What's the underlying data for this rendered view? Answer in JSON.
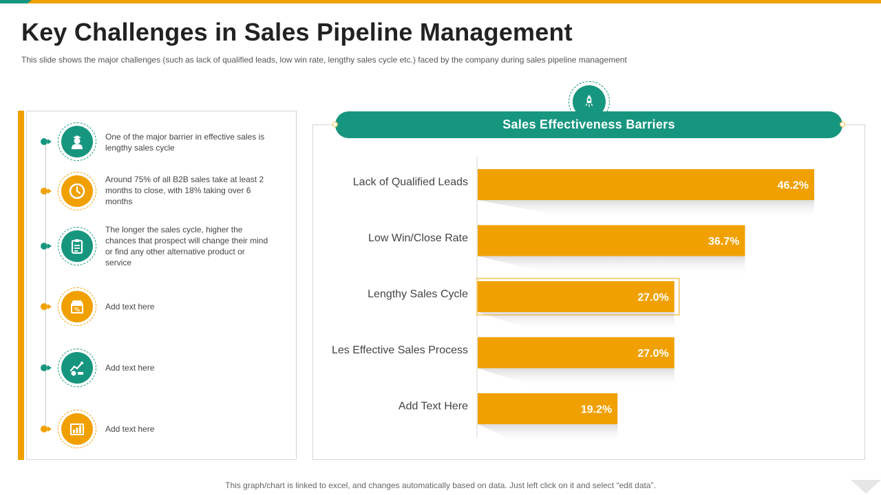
{
  "title": "Key Challenges in Sales Pipeline Management",
  "subtitle": "This slide shows the major challenges (such as lack of qualified leads, low win rate, lengthy sales cycle etc.) faced by the company during sales pipeline management",
  "footer": "This graph/chart is linked to excel, and changes automatically based on data. Just left click on it and select “edit data”.",
  "colors": {
    "accent": "#f0a000",
    "brand": "#17967f"
  },
  "challenges": [
    {
      "icon": "salesperson-icon",
      "text": "One of the major barrier in effective sales is lengthy sales cycle"
    },
    {
      "icon": "clock-icon",
      "text": "Around 75% of all B2B sales take at least 2 months to close, with 18% taking over 6 months"
    },
    {
      "icon": "clipboard-icon",
      "text": "The longer the sales cycle, higher the chances that prospect will change their mind or find any other alternative product or service"
    },
    {
      "icon": "discount-store-icon",
      "text": "Add text here"
    },
    {
      "icon": "growth-chart-icon",
      "text": "Add text here"
    },
    {
      "icon": "analytics-icon",
      "text": "Add text here"
    }
  ],
  "chart_data": {
    "type": "bar",
    "orientation": "horizontal",
    "title": "Sales Effectiveness Barriers",
    "categories": [
      "Lack of Qualified Leads",
      "Low Win/Close Rate",
      "Lengthy Sales Cycle",
      "Les Effective Sales Process",
      "Add Text Here"
    ],
    "values": [
      46.2,
      36.7,
      27.0,
      27.0,
      19.2
    ],
    "value_labels": [
      "46.2%",
      "36.7%",
      "27.0%",
      "27.0%",
      "19.2%"
    ],
    "xlim": [
      0,
      60
    ],
    "highlighted": "Lengthy Sales Cycle",
    "xlabel": "",
    "ylabel": ""
  }
}
